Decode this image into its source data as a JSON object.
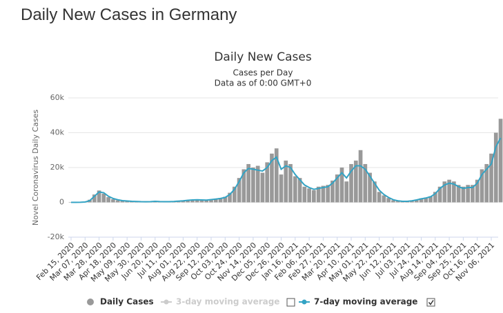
{
  "page_title": "Daily New Cases in Germany",
  "chart_data": {
    "type": "bar",
    "title": "Daily New Cases",
    "subtitle": "Cases per Day",
    "note": "Data as of 0:00 GMT+0",
    "y_label": "Novel Coronavirus Daily Cases",
    "categories": [
      "Feb 15, 2020",
      null,
      null,
      "Mar 07, 2020",
      null,
      null,
      "Mar 28, 2020",
      null,
      null,
      "Apr 18, 2020",
      null,
      null,
      "May 09, 2020",
      null,
      null,
      "May 30, 2020",
      null,
      null,
      "Jun 20, 2020",
      null,
      null,
      "Jul 11, 2020",
      null,
      null,
      "Aug 01, 2020",
      null,
      null,
      "Aug 22, 2020",
      null,
      null,
      "Sep 12, 2020",
      null,
      null,
      "Oct 03, 2020",
      null,
      null,
      "Oct 24, 2020",
      null,
      null,
      "Nov 14, 2020",
      null,
      null,
      "Dec 05, 2020",
      null,
      null,
      "Dec 26, 2020",
      null,
      null,
      "Jan 16, 2021",
      null,
      null,
      "Feb 06, 2021",
      null,
      null,
      "Feb 27, 2021",
      null,
      null,
      "Mar 20, 2021",
      null,
      null,
      "Apr 10, 2021",
      null,
      null,
      "May 01, 2021",
      null,
      null,
      "May 22, 2021",
      null,
      null,
      "Jun 12, 2021",
      null,
      null,
      "Jul 03, 2021",
      null,
      null,
      "Jul 24, 2021",
      null,
      null,
      "Aug 14, 2021",
      null,
      null,
      "Sep 04, 2021",
      null,
      null,
      "Sep 25, 2021",
      null,
      null,
      "Oct 16, 2021",
      null,
      null,
      "Nov 06, 2021",
      null,
      null
    ],
    "series": [
      {
        "name": "Daily Cases",
        "type": "bar",
        "color": "#999999",
        "values": [
          0,
          0,
          80,
          300,
          1500,
          4500,
          6800,
          5000,
          3000,
          1800,
          1200,
          900,
          700,
          550,
          450,
          350,
          300,
          500,
          700,
          400,
          350,
          380,
          550,
          800,
          1000,
          1300,
          1500,
          1600,
          1200,
          1400,
          1800,
          2100,
          2500,
          3200,
          5500,
          9000,
          14000,
          19000,
          22000,
          20000,
          21000,
          17000,
          23000,
          28000,
          31000,
          16000,
          24000,
          22000,
          15000,
          14000,
          9000,
          8000,
          7000,
          9000,
          9500,
          10000,
          12500,
          16000,
          20000,
          12000,
          22000,
          24000,
          30000,
          22000,
          17000,
          12000,
          6000,
          4000,
          2500,
          1200,
          800,
          500,
          600,
          1000,
          1600,
          2300,
          2800,
          3500,
          6000,
          9000,
          12000,
          13000,
          12000,
          10000,
          9000,
          10000,
          10000,
          13000,
          19000,
          22000,
          28000,
          40000,
          48000
        ]
      },
      {
        "name": "3-day moving average",
        "type": "line",
        "color": "#cccccc",
        "visible": false
      },
      {
        "name": "7-day moving average",
        "type": "line",
        "color": "#33a3c4",
        "values": [
          0,
          0,
          50,
          200,
          1000,
          3500,
          6000,
          5500,
          3500,
          2200,
          1500,
          1000,
          800,
          600,
          500,
          400,
          350,
          400,
          600,
          450,
          400,
          400,
          500,
          700,
          900,
          1200,
          1400,
          1500,
          1400,
          1300,
          1600,
          1900,
          2200,
          2800,
          4500,
          7500,
          12000,
          17000,
          19500,
          19000,
          18500,
          18000,
          20000,
          24000,
          26000,
          19000,
          21000,
          20000,
          16000,
          13000,
          10000,
          8500,
          7500,
          8000,
          8500,
          9000,
          11000,
          14000,
          17000,
          14000,
          18000,
          21000,
          21000,
          19000,
          15000,
          11000,
          7000,
          4500,
          2800,
          1500,
          900,
          600,
          600,
          900,
          1400,
          2000,
          2500,
          3200,
          5000,
          8000,
          10000,
          11000,
          10500,
          9000,
          8000,
          8500,
          8500,
          11000,
          16000,
          19000,
          22000,
          32000,
          37000
        ]
      }
    ],
    "ylim": [
      -20000,
      60000
    ],
    "yticks": [
      {
        "value": -20000,
        "label": "-20k"
      },
      0,
      {
        "value": 20000,
        "label": "20k"
      },
      {
        "value": 40000,
        "label": "40k"
      },
      {
        "value": 60000,
        "label": "60k"
      }
    ],
    "grid": true
  }
}
